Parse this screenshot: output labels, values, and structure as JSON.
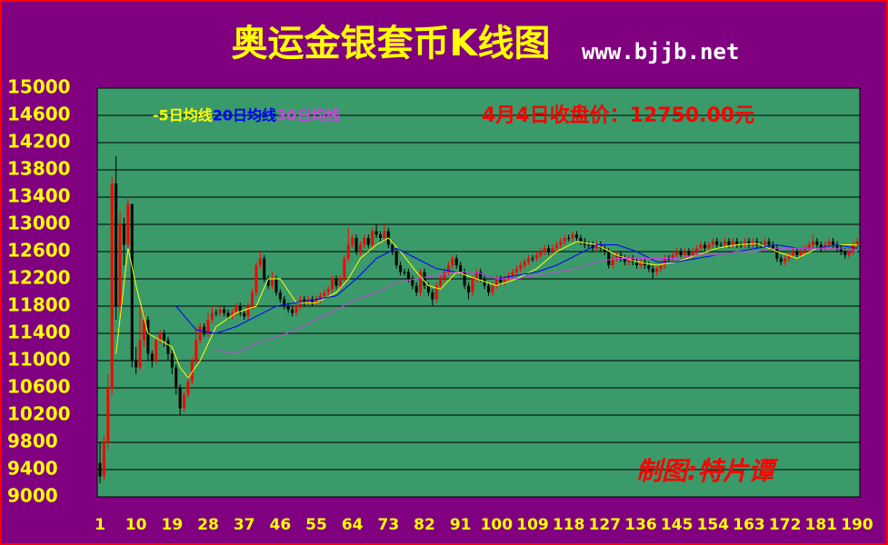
{
  "chart_data": {
    "type": "candlestick",
    "title": "奥运金银套币K线图",
    "subtitle": "www.bjjb.net",
    "annotations": [
      "4月4日收盘价：12750.00元",
      "制图:特片谭"
    ],
    "xlim": [
      1,
      190
    ],
    "xticks": [
      1,
      10,
      19,
      28,
      37,
      46,
      55,
      64,
      73,
      82,
      91,
      100,
      109,
      118,
      127,
      136,
      145,
      154,
      163,
      172,
      181,
      190
    ],
    "ylim": [
      9000,
      15000
    ],
    "yticks": [
      9000,
      9400,
      9800,
      10200,
      10600,
      11000,
      11400,
      11800,
      12200,
      12600,
      13000,
      13400,
      13800,
      14200,
      14600,
      15000
    ],
    "grid": true,
    "up_color": "#ff0000",
    "down_color": "#000000",
    "x": [
      1,
      2,
      3,
      4,
      5,
      6,
      7,
      8,
      9,
      10,
      11,
      12,
      13,
      14,
      15,
      16,
      17,
      18,
      19,
      20,
      21,
      22,
      23,
      24,
      25,
      26,
      27,
      28,
      29,
      30,
      31,
      32,
      33,
      34,
      35,
      36,
      37,
      38,
      39,
      40,
      41,
      42,
      43,
      44,
      45,
      46,
      47,
      48,
      49,
      50,
      51,
      52,
      53,
      54,
      55,
      56,
      57,
      58,
      59,
      60,
      61,
      62,
      63,
      64,
      65,
      66,
      67,
      68,
      69,
      70,
      71,
      72,
      73,
      74,
      75,
      76,
      77,
      78,
      79,
      80,
      81,
      82,
      83,
      84,
      85,
      86,
      87,
      88,
      89,
      90,
      91,
      92,
      93,
      94,
      95,
      96,
      97,
      98,
      99,
      100,
      101,
      102,
      103,
      104,
      105,
      106,
      107,
      108,
      109,
      110,
      111,
      112,
      113,
      114,
      115,
      116,
      117,
      118,
      119,
      120,
      121,
      122,
      123,
      124,
      125,
      126,
      127,
      128,
      129,
      130,
      131,
      132,
      133,
      134,
      135,
      136,
      137,
      138,
      139,
      140,
      141,
      142,
      143,
      144,
      145,
      146,
      147,
      148,
      149,
      150,
      151,
      152,
      153,
      154,
      155,
      156,
      157,
      158,
      159,
      160,
      161,
      162,
      163,
      164,
      165,
      166,
      167,
      168,
      169,
      170,
      171,
      172,
      173,
      174,
      175,
      176,
      177,
      178,
      179,
      180,
      181,
      182,
      183,
      184,
      185,
      186,
      187,
      188,
      189,
      190
    ],
    "open": [
      9500,
      9300,
      9800,
      10600,
      13600,
      11800,
      13000,
      12700,
      13300,
      11000,
      10900,
      11300,
      11600,
      11100,
      11000,
      11300,
      11400,
      11300,
      11100,
      10900,
      10600,
      10300,
      10500,
      10700,
      11000,
      11300,
      11500,
      11400,
      11600,
      11700,
      11700,
      11750,
      11700,
      11650,
      11700,
      11800,
      11700,
      11650,
      11800,
      12000,
      12400,
      12500,
      12200,
      12100,
      12200,
      12000,
      11900,
      11800,
      11750,
      11700,
      11800,
      11900,
      11850,
      11900,
      11850,
      11900,
      11950,
      12000,
      12050,
      12200,
      12100,
      12200,
      12500,
      12700,
      12800,
      12600,
      12700,
      12800,
      12700,
      12900,
      12850,
      12800,
      12900,
      12700,
      12600,
      12400,
      12300,
      12300,
      12200,
      12100,
      12000,
      12300,
      12100,
      12000,
      11900,
      12100,
      12200,
      12300,
      12400,
      12500,
      12400,
      12300,
      12100,
      12000,
      12200,
      12300,
      12200,
      12100,
      12000,
      12100,
      12200,
      12150,
      12200,
      12250,
      12300,
      12350,
      12400,
      12450,
      12500,
      12500,
      12550,
      12600,
      12650,
      12600,
      12650,
      12700,
      12750,
      12800,
      12800,
      12850,
      12800,
      12750,
      12700,
      12700,
      12650,
      12700,
      12650,
      12600,
      12400,
      12500,
      12550,
      12500,
      12450,
      12500,
      12450,
      12400,
      12450,
      12400,
      12350,
      12300,
      12350,
      12400,
      12500,
      12500,
      12550,
      12600,
      12550,
      12600,
      12550,
      12600,
      12650,
      12700,
      12650,
      12700,
      12750,
      12700,
      12700,
      12750,
      12700,
      12750,
      12700,
      12700,
      12750,
      12700,
      12750,
      12700,
      12700,
      12750,
      12700,
      12650,
      12500,
      12450,
      12500,
      12550,
      12600,
      12550,
      12600,
      12650,
      12700,
      12750,
      12700,
      12650,
      12700,
      12750,
      12700,
      12650,
      12600,
      12550,
      12600,
      12700
    ],
    "close": [
      9300,
      9800,
      10600,
      13600,
      11800,
      13000,
      12700,
      13300,
      11000,
      10900,
      11300,
      11600,
      11100,
      11000,
      11300,
      11400,
      11300,
      11100,
      10900,
      10600,
      10300,
      10500,
      10700,
      11000,
      11300,
      11500,
      11400,
      11600,
      11700,
      11700,
      11750,
      11700,
      11650,
      11700,
      11800,
      11700,
      11650,
      11800,
      12000,
      12400,
      12500,
      12200,
      12100,
      12200,
      12000,
      11900,
      11800,
      11750,
      11700,
      11800,
      11900,
      11850,
      11900,
      11850,
      11900,
      11950,
      12000,
      12050,
      12200,
      12100,
      12200,
      12500,
      12700,
      12800,
      12600,
      12700,
      12800,
      12700,
      12900,
      12850,
      12800,
      12900,
      12700,
      12600,
      12400,
      12300,
      12300,
      12200,
      12100,
      12000,
      12300,
      12100,
      12000,
      11900,
      12100,
      12200,
      12300,
      12400,
      12500,
      12400,
      12300,
      12100,
      12000,
      12200,
      12300,
      12200,
      12100,
      12000,
      12100,
      12200,
      12150,
      12200,
      12250,
      12300,
      12350,
      12400,
      12450,
      12500,
      12500,
      12550,
      12600,
      12650,
      12600,
      12650,
      12700,
      12750,
      12800,
      12800,
      12850,
      12800,
      12750,
      12700,
      12700,
      12650,
      12700,
      12650,
      12600,
      12400,
      12500,
      12550,
      12500,
      12450,
      12500,
      12450,
      12400,
      12450,
      12400,
      12350,
      12300,
      12350,
      12400,
      12500,
      12500,
      12550,
      12600,
      12550,
      12600,
      12550,
      12600,
      12650,
      12700,
      12650,
      12700,
      12750,
      12700,
      12700,
      12750,
      12700,
      12750,
      12700,
      12700,
      12750,
      12700,
      12750,
      12700,
      12700,
      12750,
      12700,
      12650,
      12500,
      12450,
      12500,
      12550,
      12600,
      12550,
      12600,
      12650,
      12700,
      12750,
      12700,
      12650,
      12700,
      12750,
      12700,
      12650,
      12600,
      12550,
      12600,
      12700,
      12750
    ],
    "high": [
      9800,
      9900,
      10800,
      13700,
      14000,
      13200,
      13100,
      13400,
      13300,
      11200,
      11800,
      11700,
      11650,
      11150,
      11350,
      11450,
      11450,
      11350,
      11150,
      10950,
      10650,
      10550,
      10800,
      11050,
      11500,
      11550,
      11550,
      11700,
      11800,
      11750,
      11800,
      11800,
      11750,
      11750,
      11850,
      11850,
      11750,
      11850,
      12050,
      12450,
      12600,
      12550,
      12250,
      12300,
      12250,
      12050,
      11950,
      11850,
      11800,
      11850,
      11950,
      11950,
      11950,
      11950,
      11950,
      12000,
      12050,
      12100,
      12250,
      12250,
      12250,
      12550,
      12950,
      12850,
      12850,
      12750,
      12850,
      12850,
      12950,
      13000,
      12900,
      13000,
      12950,
      12750,
      12650,
      12450,
      12350,
      12350,
      12250,
      12150,
      12350,
      12350,
      12150,
      12050,
      12150,
      12250,
      12350,
      12450,
      12550,
      12550,
      12450,
      12350,
      12150,
      12250,
      12350,
      12350,
      12250,
      12150,
      12150,
      12250,
      12250,
      12250,
      12300,
      12350,
      12400,
      12450,
      12500,
      12550,
      12550,
      12600,
      12650,
      12700,
      12700,
      12700,
      12750,
      12800,
      12850,
      12850,
      12900,
      12900,
      12850,
      12800,
      12750,
      12750,
      12750,
      12750,
      12700,
      12650,
      12550,
      12600,
      12600,
      12550,
      12550,
      12550,
      12500,
      12500,
      12500,
      12450,
      12400,
      12400,
      12450,
      12550,
      12550,
      12600,
      12650,
      12650,
      12650,
      12650,
      12650,
      12700,
      12750,
      12750,
      12750,
      12800,
      12800,
      12750,
      12800,
      12800,
      12800,
      12800,
      12750,
      12800,
      12800,
      12800,
      12800,
      12750,
      12800,
      12800,
      12750,
      12700,
      12550,
      12550,
      12600,
      12650,
      12650,
      12650,
      12700,
      12750,
      12850,
      12800,
      12750,
      12750,
      12800,
      12800,
      12750,
      12700,
      12650,
      12650,
      12750,
      12800
    ],
    "low": [
      9200,
      9250,
      9700,
      10500,
      11600,
      11700,
      12400,
      12600,
      10900,
      10800,
      10850,
      11200,
      11000,
      10900,
      10950,
      11250,
      11200,
      11000,
      10800,
      10500,
      10200,
      10250,
      10450,
      10650,
      10950,
      11250,
      11350,
      11350,
      11550,
      11650,
      11650,
      11650,
      11600,
      11600,
      11650,
      11650,
      11600,
      11600,
      11750,
      11950,
      12350,
      12150,
      12050,
      12050,
      11950,
      11850,
      11750,
      11700,
      11650,
      11650,
      11750,
      11800,
      11800,
      11800,
      11800,
      11850,
      11900,
      11950,
      12000,
      12050,
      12050,
      12150,
      12450,
      12650,
      12550,
      12550,
      12650,
      12650,
      12650,
      12800,
      12750,
      12750,
      12650,
      12550,
      12350,
      12250,
      12250,
      12150,
      12050,
      11950,
      11950,
      12050,
      11950,
      11800,
      11850,
      12050,
      12150,
      12250,
      12350,
      12350,
      12250,
      12050,
      11900,
      11950,
      12150,
      12150,
      12050,
      11950,
      11950,
      12050,
      12100,
      12100,
      12150,
      12200,
      12250,
      12300,
      12350,
      12400,
      12450,
      12450,
      12500,
      12550,
      12550,
      12550,
      12600,
      12650,
      12700,
      12750,
      12750,
      12750,
      12700,
      12650,
      12650,
      12600,
      12600,
      12600,
      12550,
      12350,
      12350,
      12450,
      12450,
      12400,
      12400,
      12400,
      12350,
      12350,
      12350,
      12300,
      12200,
      12250,
      12300,
      12350,
      12450,
      12450,
      12500,
      12500,
      12500,
      12500,
      12500,
      12550,
      12600,
      12600,
      12600,
      12650,
      12650,
      12650,
      12650,
      12650,
      12650,
      12650,
      12650,
      12650,
      12650,
      12650,
      12650,
      12650,
      12650,
      12650,
      12600,
      12450,
      12400,
      12400,
      12450,
      12500,
      12500,
      12500,
      12550,
      12600,
      12650,
      12650,
      12600,
      12600,
      12650,
      12650,
      12600,
      12550,
      12500,
      12500,
      12550,
      12650
    ],
    "series": [
      {
        "name": "-5日均线",
        "color": "#ffff00",
        "x": [
          5,
          8,
          10,
          13,
          16,
          19,
          21,
          23,
          26,
          30,
          35,
          40,
          43,
          46,
          50,
          55,
          60,
          63,
          66,
          70,
          73,
          76,
          80,
          83,
          86,
          90,
          95,
          100,
          105,
          110,
          115,
          120,
          125,
          130,
          135,
          140,
          145,
          150,
          155,
          160,
          165,
          170,
          175,
          180,
          185,
          190
        ],
        "values": [
          11100,
          12650,
          12100,
          11400,
          11300,
          11200,
          10900,
          10750,
          11000,
          11500,
          11700,
          11800,
          12200,
          12200,
          11850,
          11850,
          12000,
          12200,
          12500,
          12700,
          12800,
          12600,
          12300,
          12100,
          12050,
          12300,
          12200,
          12100,
          12200,
          12350,
          12600,
          12750,
          12700,
          12550,
          12450,
          12400,
          12450,
          12550,
          12650,
          12700,
          12720,
          12600,
          12500,
          12650,
          12700,
          12700
        ]
      },
      {
        "name": "20日均线",
        "color": "#0000ff",
        "x": [
          20,
          25,
          30,
          35,
          40,
          45,
          50,
          55,
          60,
          65,
          70,
          75,
          80,
          85,
          90,
          95,
          100,
          105,
          110,
          115,
          120,
          125,
          130,
          135,
          140,
          145,
          150,
          155,
          160,
          165,
          170,
          175,
          180,
          185,
          190
        ],
        "values": [
          11800,
          11450,
          11400,
          11500,
          11650,
          11800,
          11850,
          11900,
          11950,
          12200,
          12500,
          12650,
          12500,
          12350,
          12300,
          12300,
          12200,
          12250,
          12300,
          12400,
          12550,
          12700,
          12700,
          12600,
          12450,
          12450,
          12500,
          12550,
          12600,
          12650,
          12700,
          12650,
          12650,
          12700,
          12650
        ]
      },
      {
        "name": "30日均线",
        "color": "#cc44dd",
        "x": [
          30,
          35,
          40,
          45,
          50,
          55,
          60,
          65,
          70,
          75,
          80,
          85,
          90,
          95,
          100,
          105,
          110,
          115,
          120,
          125,
          130,
          135,
          140,
          145,
          150,
          155,
          160,
          165,
          170,
          175,
          180,
          185,
          190
        ],
        "values": [
          11150,
          11100,
          11250,
          11350,
          11450,
          11600,
          11750,
          11900,
          12000,
          12150,
          12200,
          12250,
          12300,
          12300,
          12200,
          12200,
          12250,
          12300,
          12350,
          12450,
          12500,
          12500,
          12500,
          12500,
          12550,
          12550,
          12600,
          12600,
          12650,
          12650,
          12650,
          12650,
          12600
        ]
      }
    ]
  }
}
